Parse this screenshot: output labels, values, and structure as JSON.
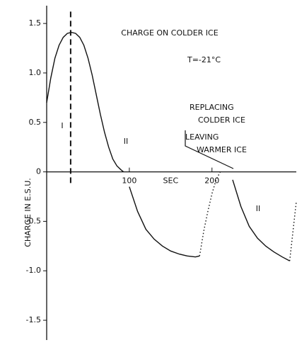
{
  "chart_data": {
    "type": "line",
    "title": "CHARGE ON COLDER ICE",
    "ylabel": "CHARGE IN E.S.U.",
    "xlabel": "SEC",
    "annotations": [
      "T=-21°C",
      "REPLACING",
      "COLDER ICE",
      "LEAVING",
      "WARMER ICE",
      "I",
      "II",
      "II"
    ],
    "xlim": [
      0,
      302
    ],
    "ylim": [
      -1.7,
      1.68
    ],
    "xticks": [
      100,
      200
    ],
    "yticks": [
      1.5,
      {
        "value": 1.0,
        "label": "1.0"
      },
      0.5,
      0,
      -0.5,
      {
        "value": -1.0,
        "label": "-1.0"
      },
      -1.5
    ],
    "series": [
      {
        "color": "#111",
        "style": "solid",
        "x": [
          0,
          5,
          10,
          15,
          20,
          25,
          30,
          35,
          40,
          45,
          50,
          55,
          60,
          65,
          70,
          75,
          80,
          85,
          90,
          93
        ],
        "values": [
          0.7,
          0.95,
          1.15,
          1.28,
          1.36,
          1.4,
          1.41,
          1.4,
          1.36,
          1.28,
          1.15,
          0.98,
          0.78,
          0.58,
          0.4,
          0.25,
          0.13,
          0.06,
          0.02,
          0
        ]
      },
      {
        "color": "#111",
        "style": "solid",
        "x": [
          100,
          110,
          120,
          130,
          140,
          150,
          160,
          170,
          180,
          185
        ],
        "values": [
          -0.15,
          -0.4,
          -0.58,
          -0.68,
          -0.75,
          -0.8,
          -0.83,
          -0.85,
          -0.86,
          -0.85
        ]
      },
      {
        "color": "#111",
        "style": "dotted",
        "x": [
          185,
          190,
          195,
          200,
          205,
          210
        ],
        "values": [
          -0.85,
          -0.6,
          -0.4,
          -0.22,
          -0.08,
          0.0
        ]
      },
      {
        "color": "#111",
        "style": "solid",
        "x": [
          225,
          235,
          245,
          255,
          265,
          275,
          285,
          294
        ],
        "values": [
          -0.08,
          -0.35,
          -0.55,
          -0.67,
          -0.75,
          -0.81,
          -0.86,
          -0.9
        ]
      },
      {
        "color": "#111",
        "style": "dotted",
        "x": [
          294,
          298,
          302
        ],
        "values": [
          -0.9,
          -0.6,
          -0.3
        ]
      },
      {
        "color": "#111",
        "style": "dashed",
        "x": [
          29,
          29
        ],
        "values": [
          1.62,
          -0.14
        ]
      }
    ]
  }
}
